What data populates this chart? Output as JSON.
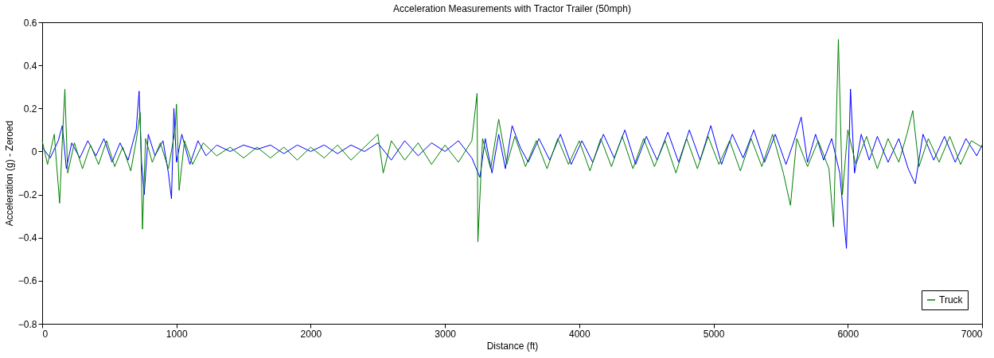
{
  "chart_data": {
    "type": "line",
    "title": "Acceleration Measurements with Tractor Trailer (50mph)",
    "xlabel": "Distance (ft)",
    "ylabel": "Acceleration (g) - Zeroed",
    "xlim": [
      0,
      7000
    ],
    "xticks": [
      0,
      1000,
      2000,
      3000,
      4000,
      5000,
      6000,
      7000
    ],
    "ylim": [
      -0.8,
      0.6
    ],
    "yticks": [
      -0.8,
      -0.6,
      -0.4,
      -0.2,
      0,
      0.2,
      0.4,
      0.6
    ],
    "grid": false,
    "legend": "bottom right",
    "marker": "none",
    "line_style": "solid",
    "series": [
      {
        "color": "#0000ff",
        "x": [
          0,
          60,
          120,
          150,
          180,
          220,
          280,
          340,
          400,
          460,
          520,
          580,
          640,
          700,
          722,
          740,
          760,
          790,
          840,
          900,
          940,
          963,
          981,
          1000,
          1040,
          1100,
          1160,
          1220,
          1300,
          1400,
          1500,
          1600,
          1700,
          1800,
          1900,
          2000,
          2100,
          2200,
          2300,
          2400,
          2500,
          2600,
          2700,
          2800,
          2900,
          3000,
          3100,
          3200,
          3260,
          3300,
          3350,
          3400,
          3450,
          3500,
          3560,
          3620,
          3700,
          3780,
          3860,
          3940,
          4020,
          4100,
          4180,
          4260,
          4340,
          4420,
          4500,
          4580,
          4660,
          4740,
          4820,
          4900,
          4980,
          5060,
          5140,
          5220,
          5300,
          5380,
          5460,
          5540,
          5600,
          5653,
          5700,
          5760,
          5820,
          5880,
          5940,
          5990,
          6020,
          6050,
          6100,
          6160,
          6220,
          6300,
          6380,
          6450,
          6502,
          6560,
          6640,
          6720,
          6800,
          6880,
          6960,
          7000
        ],
        "values": [
          0.02,
          -0.03,
          0.05,
          0.12,
          -0.08,
          0.04,
          -0.03,
          0.05,
          -0.02,
          0.06,
          -0.05,
          0.04,
          -0.04,
          0.1,
          0.28,
          -0.05,
          -0.2,
          0.08,
          -0.02,
          0.05,
          -0.1,
          -0.22,
          0.2,
          -0.05,
          0.08,
          -0.06,
          0.05,
          -0.02,
          0.03,
          0.0,
          0.03,
          0.01,
          0.03,
          -0.01,
          0.03,
          0.0,
          0.03,
          -0.01,
          0.03,
          0.0,
          0.04,
          -0.04,
          0.05,
          -0.02,
          0.04,
          0.0,
          0.05,
          -0.03,
          -0.12,
          0.06,
          -0.1,
          0.08,
          -0.08,
          0.12,
          0.02,
          -0.05,
          0.06,
          -0.04,
          0.08,
          -0.06,
          0.05,
          -0.05,
          0.08,
          -0.03,
          0.1,
          -0.06,
          0.07,
          -0.04,
          0.09,
          -0.05,
          0.1,
          -0.04,
          0.12,
          -0.06,
          0.08,
          -0.03,
          0.1,
          -0.05,
          0.08,
          -0.06,
          0.05,
          0.16,
          -0.05,
          0.08,
          -0.04,
          0.06,
          -0.1,
          -0.45,
          0.29,
          -0.1,
          0.08,
          -0.04,
          0.07,
          -0.05,
          0.06,
          -0.08,
          -0.15,
          0.08,
          -0.04,
          0.07,
          -0.05,
          0.06,
          -0.02,
          0.03
        ]
      },
      {
        "name": "Truck",
        "color": "#008000",
        "x": [
          0,
          40,
          90,
          130,
          150,
          169,
          190,
          240,
          300,
          360,
          420,
          480,
          540,
          600,
          660,
          700,
          730,
          747,
          770,
          820,
          880,
          940,
          990,
          1000,
          1020,
          1060,
          1120,
          1200,
          1300,
          1400,
          1500,
          1600,
          1700,
          1800,
          1900,
          2000,
          2100,
          2200,
          2300,
          2400,
          2500,
          2540,
          2600,
          2700,
          2800,
          2900,
          3000,
          3100,
          3200,
          3239,
          3245,
          3280,
          3340,
          3400,
          3460,
          3520,
          3600,
          3680,
          3760,
          3840,
          3920,
          4000,
          4080,
          4160,
          4240,
          4320,
          4400,
          4480,
          4560,
          4640,
          4720,
          4800,
          4880,
          4960,
          5040,
          5120,
          5200,
          5280,
          5360,
          5440,
          5520,
          5573,
          5620,
          5700,
          5780,
          5860,
          5894,
          5930,
          5960,
          6000,
          6060,
          6140,
          6220,
          6300,
          6380,
          6440,
          6484,
          6530,
          6600,
          6680,
          6760,
          6840,
          6920,
          7000
        ],
        "values": [
          0.05,
          -0.06,
          0.08,
          -0.24,
          0.05,
          0.29,
          -0.1,
          0.04,
          -0.08,
          0.03,
          -0.06,
          0.05,
          -0.07,
          0.02,
          -0.09,
          0.05,
          0.18,
          -0.36,
          0.06,
          -0.05,
          0.04,
          -0.08,
          0.1,
          0.22,
          -0.18,
          0.05,
          -0.06,
          0.04,
          -0.02,
          0.02,
          -0.03,
          0.02,
          -0.03,
          0.02,
          -0.04,
          0.02,
          -0.03,
          0.03,
          -0.04,
          0.02,
          0.08,
          -0.1,
          0.05,
          -0.04,
          0.04,
          -0.06,
          0.03,
          -0.05,
          0.05,
          0.27,
          -0.42,
          0.06,
          -0.08,
          0.15,
          -0.06,
          0.07,
          -0.07,
          0.05,
          -0.08,
          0.06,
          -0.06,
          0.05,
          -0.09,
          0.06,
          -0.07,
          0.07,
          -0.08,
          0.06,
          -0.07,
          0.05,
          -0.1,
          0.06,
          -0.08,
          0.07,
          -0.06,
          0.05,
          -0.09,
          0.06,
          -0.07,
          0.08,
          -0.1,
          -0.25,
          0.06,
          -0.07,
          0.05,
          -0.08,
          -0.35,
          0.52,
          -0.2,
          0.1,
          -0.06,
          0.07,
          -0.08,
          0.06,
          -0.05,
          0.08,
          0.19,
          -0.07,
          0.06,
          -0.05,
          0.07,
          -0.06,
          0.05,
          0.02
        ]
      }
    ]
  }
}
